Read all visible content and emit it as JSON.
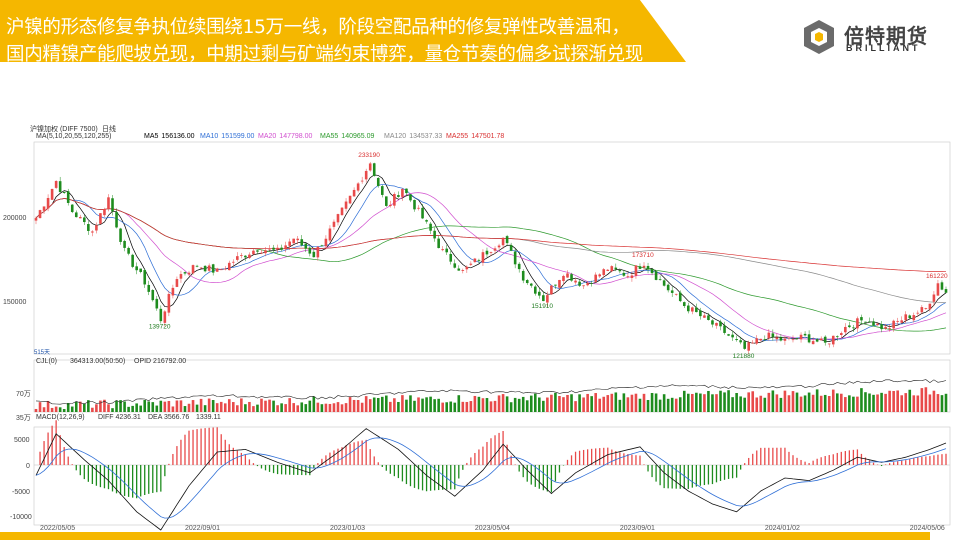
{
  "header": {
    "line1": "沪镍的形态修复争执位续围绕15万一线，阶段空配品种的修复弹性改善温和，",
    "line2": "国内精镍产能爬坡兑现，中期过剩与矿端约束博弈，量仓节奏的偏多试探渐兑现"
  },
  "logo": {
    "cn": "倍特期货",
    "en": "BRILLIANT"
  },
  "colors": {
    "accent": "#f5b700",
    "up": "#e84a4a",
    "down": "#1e8c1e"
  },
  "chart_data": {
    "type": "candlestick",
    "instrument_label": "沪镍加权 (DIFF 7500)",
    "period_label": "日线",
    "ma_legend": {
      "label": "MA(5,10,20,55,120,255)",
      "items": [
        {
          "name": "MA5",
          "value": "156136.00",
          "color": "#000000"
        },
        {
          "name": "MA10",
          "value": "151599.00",
          "color": "#2f6fd6"
        },
        {
          "name": "MA20",
          "value": "147798.00",
          "color": "#d14fcf"
        },
        {
          "name": "MA55",
          "value": "140965.09",
          "color": "#2e9a2e"
        },
        {
          "name": "MA120",
          "value": "134537.33",
          "color": "#8a8a8a"
        },
        {
          "name": "MA255",
          "value": "147501.78",
          "color": "#d83030"
        }
      ]
    },
    "y_ticks": [
      "200000",
      "150000"
    ],
    "price_annotations": [
      {
        "label": "233190"
      },
      {
        "label": "139720"
      },
      {
        "label": "151910"
      },
      {
        "label": "173710"
      },
      {
        "label": "121880"
      },
      {
        "label": "161220"
      }
    ],
    "days_label": "515天",
    "volume_legend": {
      "label": "CJL(0)",
      "value": "364313.00(50:50)",
      "opi": "OPID 216792.00"
    },
    "volume_ticks": [
      "70万",
      "35万"
    ],
    "macd_legend": {
      "label": "MACD(12,26,9)",
      "diff": "DIFF 4236.31",
      "dea": "DEA 3566.76",
      "macd": "1339.11"
    },
    "macd_ticks": [
      "5000",
      "0",
      "-5000",
      "-10000"
    ],
    "x_labels": [
      "2022/05/05",
      "2022/09/01",
      "2023/01/03",
      "2023/05/04",
      "2023/09/01",
      "2024/01/02",
      "2024/05/06"
    ],
    "price_keypoints": [
      {
        "t": 0,
        "p": 200000
      },
      {
        "t": 5,
        "p": 222000
      },
      {
        "t": 9,
        "p": 204000
      },
      {
        "t": 14,
        "p": 192000
      },
      {
        "t": 18,
        "p": 212000
      },
      {
        "t": 22,
        "p": 180000
      },
      {
        "t": 27,
        "p": 162000
      },
      {
        "t": 31,
        "p": 139720
      },
      {
        "t": 35,
        "p": 165000
      },
      {
        "t": 40,
        "p": 172000
      },
      {
        "t": 45,
        "p": 168000
      },
      {
        "t": 50,
        "p": 176000
      },
      {
        "t": 55,
        "p": 182000
      },
      {
        "t": 60,
        "p": 180000
      },
      {
        "t": 64,
        "p": 188000
      },
      {
        "t": 69,
        "p": 178000
      },
      {
        "t": 74,
        "p": 196000
      },
      {
        "t": 79,
        "p": 216000
      },
      {
        "t": 83,
        "p": 233190
      },
      {
        "t": 87,
        "p": 206000
      },
      {
        "t": 91,
        "p": 218000
      },
      {
        "t": 96,
        "p": 200000
      },
      {
        "t": 101,
        "p": 180000
      },
      {
        "t": 106,
        "p": 168000
      },
      {
        "t": 111,
        "p": 178000
      },
      {
        "t": 116,
        "p": 188000
      },
      {
        "t": 121,
        "p": 165000
      },
      {
        "t": 126,
        "p": 151910
      },
      {
        "t": 131,
        "p": 168000
      },
      {
        "t": 136,
        "p": 160000
      },
      {
        "t": 142,
        "p": 170000
      },
      {
        "t": 147,
        "p": 166000
      },
      {
        "t": 151,
        "p": 173710
      },
      {
        "t": 156,
        "p": 160000
      },
      {
        "t": 161,
        "p": 148000
      },
      {
        "t": 166,
        "p": 140000
      },
      {
        "t": 171,
        "p": 132000
      },
      {
        "t": 176,
        "p": 121880
      },
      {
        "t": 181,
        "p": 130000
      },
      {
        "t": 186,
        "p": 127000
      },
      {
        "t": 191,
        "p": 129000
      },
      {
        "t": 196,
        "p": 125000
      },
      {
        "t": 201,
        "p": 135000
      },
      {
        "t": 206,
        "p": 140000
      },
      {
        "t": 211,
        "p": 134000
      },
      {
        "t": 216,
        "p": 141000
      },
      {
        "t": 221,
        "p": 146000
      },
      {
        "t": 224,
        "p": 161220
      },
      {
        "t": 226,
        "p": 156000
      }
    ],
    "macd_keypoints": [
      {
        "t": 0,
        "v": -2000
      },
      {
        "t": 5,
        "v": 6000
      },
      {
        "t": 12,
        "v": 1000
      },
      {
        "t": 18,
        "v": -3000
      },
      {
        "t": 25,
        "v": -9000
      },
      {
        "t": 31,
        "v": -12500
      },
      {
        "t": 38,
        "v": -4000
      },
      {
        "t": 45,
        "v": 2500
      },
      {
        "t": 52,
        "v": 3000
      },
      {
        "t": 60,
        "v": 500
      },
      {
        "t": 68,
        "v": -1500
      },
      {
        "t": 76,
        "v": 3000
      },
      {
        "t": 82,
        "v": 7000
      },
      {
        "t": 90,
        "v": 3000
      },
      {
        "t": 97,
        "v": -2000
      },
      {
        "t": 104,
        "v": -6000
      },
      {
        "t": 111,
        "v": -1000
      },
      {
        "t": 116,
        "v": 4000
      },
      {
        "t": 122,
        "v": -1000
      },
      {
        "t": 128,
        "v": -5500
      },
      {
        "t": 134,
        "v": -1500
      },
      {
        "t": 142,
        "v": 2000
      },
      {
        "t": 150,
        "v": 3500
      },
      {
        "t": 156,
        "v": -1500
      },
      {
        "t": 162,
        "v": -5000
      },
      {
        "t": 168,
        "v": -7500
      },
      {
        "t": 174,
        "v": -9000
      },
      {
        "t": 180,
        "v": -5000
      },
      {
        "t": 186,
        "v": -2500
      },
      {
        "t": 192,
        "v": -3000
      },
      {
        "t": 198,
        "v": -1000
      },
      {
        "t": 204,
        "v": 1500
      },
      {
        "t": 210,
        "v": 500
      },
      {
        "t": 216,
        "v": 1500
      },
      {
        "t": 222,
        "v": 3000
      },
      {
        "t": 226,
        "v": 4236
      }
    ]
  }
}
